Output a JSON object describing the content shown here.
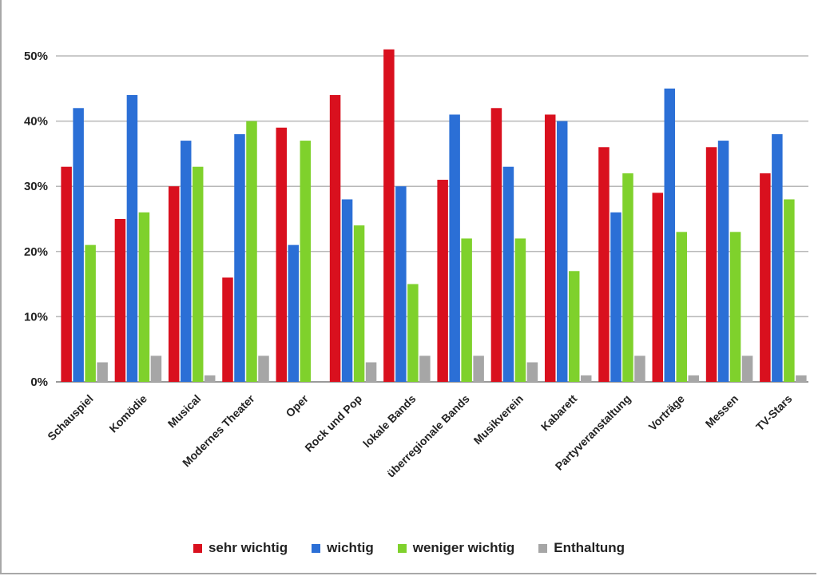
{
  "chart_data": {
    "type": "bar",
    "categories": [
      "Schauspiel",
      "Komödie",
      "Musical",
      "Modernes Theater",
      "Oper",
      "Rock und Pop",
      "lokale Bands",
      "überregionale Bands",
      "Musikverein",
      "Kabarett",
      "Partyveranstaltung",
      "Vorträge",
      "Messen",
      "TV-Stars"
    ],
    "series": [
      {
        "name": "sehr wichtig",
        "color": "#d9101e",
        "values": [
          33,
          25,
          30,
          16,
          39,
          44,
          51,
          31,
          42,
          41,
          36,
          29,
          36,
          32
        ]
      },
      {
        "name": "wichtig",
        "color": "#2b6fd6",
        "values": [
          42,
          44,
          37,
          38,
          21,
          28,
          30,
          41,
          33,
          40,
          26,
          45,
          37,
          38
        ]
      },
      {
        "name": "weniger wichtig",
        "color": "#7fd12c",
        "values": [
          21,
          26,
          33,
          40,
          37,
          24,
          15,
          22,
          22,
          17,
          32,
          23,
          23,
          28
        ]
      },
      {
        "name": "Enthaltung",
        "color": "#a6a6a6",
        "values": [
          3,
          4,
          1,
          4,
          0,
          3,
          4,
          4,
          3,
          1,
          4,
          1,
          4,
          1
        ]
      }
    ],
    "ylim": [
      0,
      50
    ],
    "yticks": [
      "0%",
      "10%",
      "20%",
      "30%",
      "40%",
      "50%"
    ],
    "grid": true,
    "legend_position": "bottom",
    "title": "",
    "xlabel": "",
    "ylabel": ""
  }
}
